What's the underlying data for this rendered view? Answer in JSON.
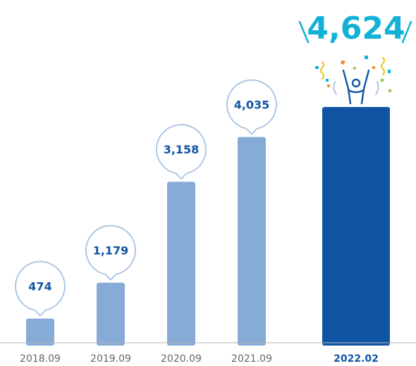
{
  "chart_data": {
    "type": "bar",
    "categories": [
      "2018.09",
      "2019.09",
      "2020.09",
      "2021.09",
      "2022.02"
    ],
    "values": [
      474,
      1179,
      3158,
      4035,
      4624
    ],
    "value_labels": [
      "474",
      "1,179",
      "3,158",
      "4,035",
      "4,624"
    ],
    "highlight_index": 4,
    "title": "",
    "xlabel": "",
    "ylabel": "",
    "ylim": [
      0,
      4624
    ],
    "grid": false,
    "legend": "none"
  },
  "colors": {
    "bar": "#86abd7",
    "highlight_bar": "#0f55a3",
    "value_text": "#0f55a3",
    "highlight_value": "#12b2d6",
    "bubble_border": "#a7c2e2",
    "axis_line": "#b5b5b5",
    "category_text": "#666666"
  },
  "icons": {
    "celebration": "celebrating-person-icon",
    "confetti": "confetti-icon"
  }
}
